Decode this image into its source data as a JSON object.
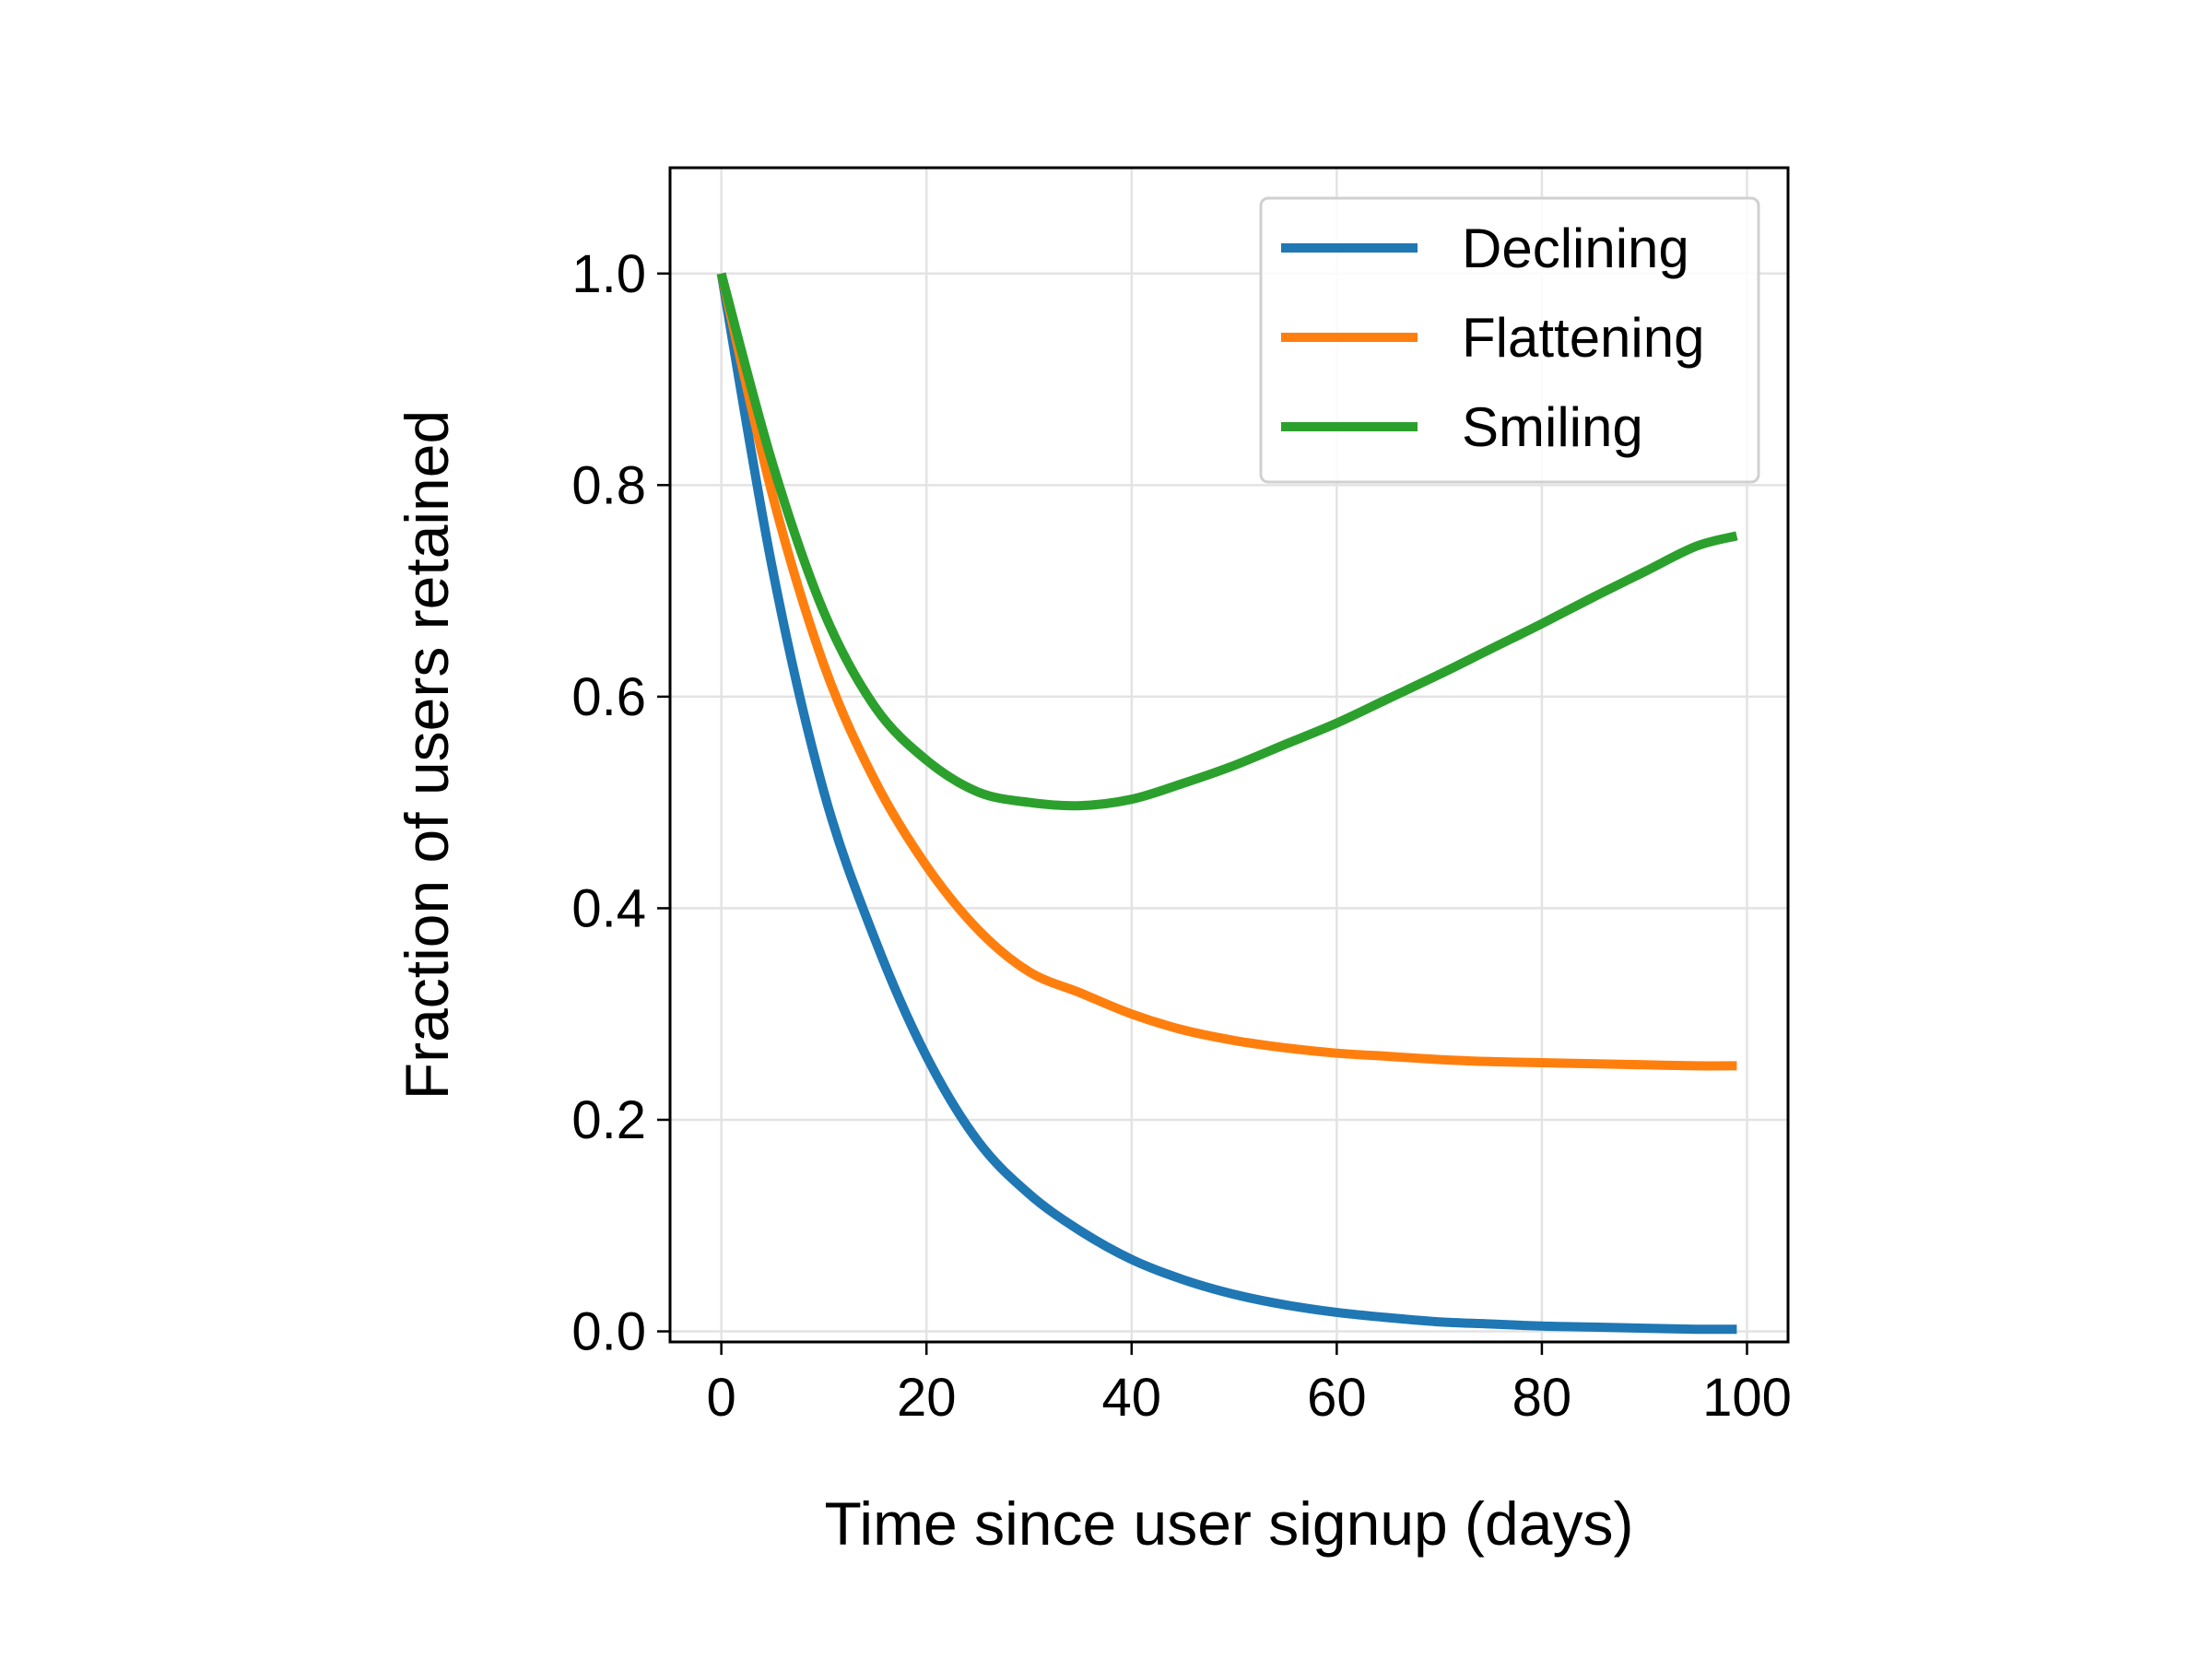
{
  "chart_data": {
    "type": "line",
    "xlabel": "Time since user signup (days)",
    "ylabel": "Fraction of users retained",
    "xlim": [
      -5,
      104
    ],
    "ylim": [
      -0.01,
      1.1
    ],
    "xticks": [
      0,
      20,
      40,
      60,
      80,
      100
    ],
    "xtick_labels": [
      "0",
      "20",
      "40",
      "60",
      "80",
      "100"
    ],
    "yticks": [
      0.0,
      0.2,
      0.4,
      0.6,
      0.8,
      1.0
    ],
    "ytick_labels": [
      "0.0",
      "0.2",
      "0.4",
      "0.6",
      "0.8",
      "1.0"
    ],
    "grid": true,
    "legend_position": "top-right",
    "x": [
      0,
      5,
      10,
      15,
      20,
      25,
      30,
      35,
      40,
      45,
      50,
      55,
      60,
      65,
      70,
      75,
      80,
      85,
      90,
      95,
      99
    ],
    "series": [
      {
        "name": "Declining",
        "color": "#1f77b4",
        "values": [
          1.0,
          0.72,
          0.51,
          0.37,
          0.26,
          0.18,
          0.13,
          0.095,
          0.068,
          0.049,
          0.035,
          0.025,
          0.018,
          0.013,
          0.009,
          0.007,
          0.005,
          0.004,
          0.003,
          0.002,
          0.002
        ]
      },
      {
        "name": "Flattening",
        "color": "#ff7f0e",
        "values": [
          1.0,
          0.79,
          0.63,
          0.52,
          0.44,
          0.38,
          0.34,
          0.32,
          0.3,
          0.285,
          0.275,
          0.268,
          0.263,
          0.26,
          0.257,
          0.255,
          0.254,
          0.253,
          0.252,
          0.251,
          0.251
        ]
      },
      {
        "name": "Smiling",
        "color": "#2ca02c",
        "values": [
          1.0,
          0.82,
          0.68,
          0.59,
          0.54,
          0.51,
          0.5,
          0.497,
          0.503,
          0.518,
          0.535,
          0.555,
          0.575,
          0.598,
          0.621,
          0.645,
          0.669,
          0.694,
          0.718,
          0.742,
          0.752
        ]
      }
    ]
  }
}
